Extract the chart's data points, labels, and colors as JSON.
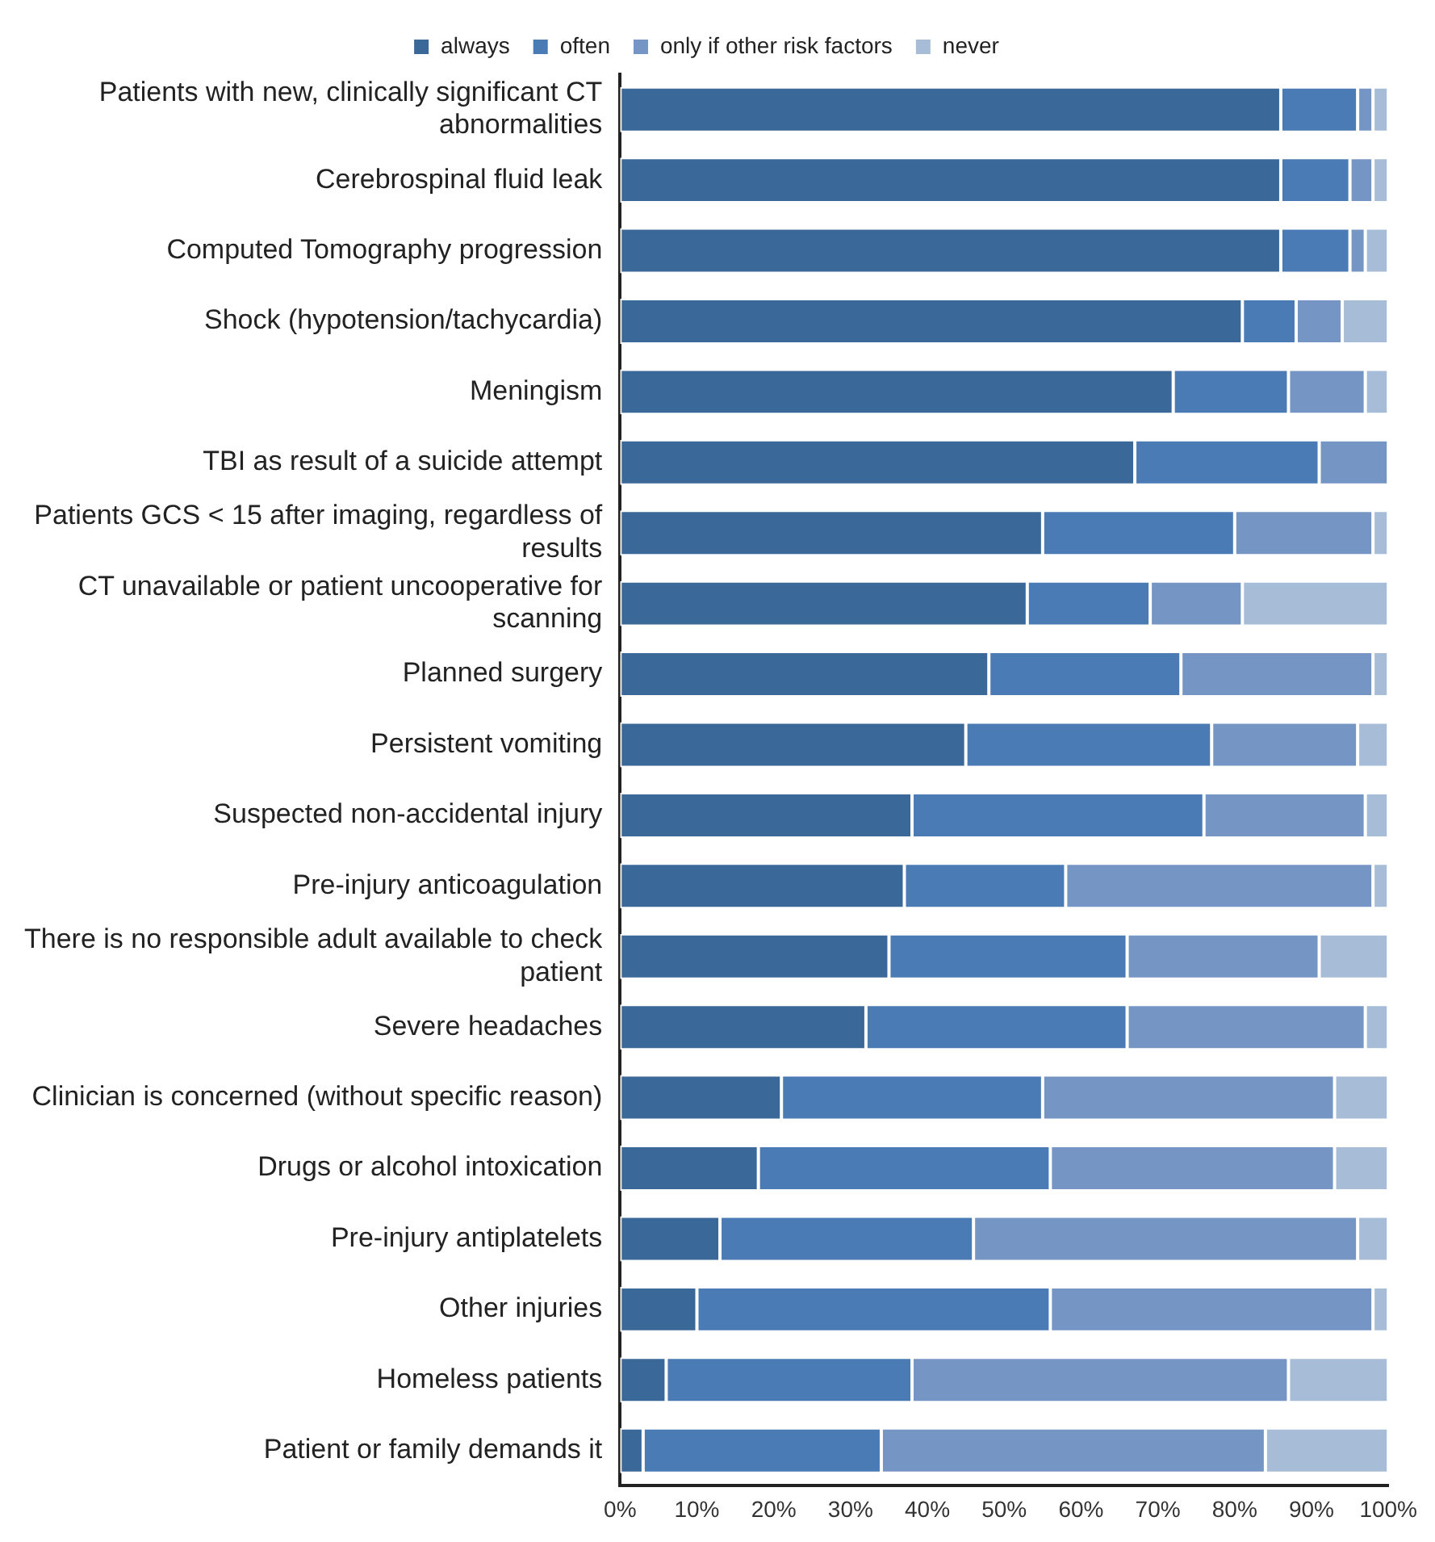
{
  "chart_data": {
    "type": "bar",
    "orientation": "horizontal",
    "stacked": true,
    "legend": "top",
    "grid": false,
    "categories": [
      "Patients with new, clinically significant CT abnormalities",
      "Cerebrospinal fluid leak",
      "Computed Tomography progression",
      "Shock (hypotension/tachycardia)",
      "Meningism",
      "TBI as result of a suicide attempt",
      "Patients GCS < 15 after imaging, regardless of results",
      "CT unavailable or patient uncooperative for scanning",
      "Planned surgery",
      "Persistent vomiting",
      "Suspected non-accidental injury",
      "Pre-injury anticoagulation",
      "There is no responsible adult available to check patient",
      "Severe headaches",
      "Clinician is concerned (without specific reason)",
      "Drugs or alcohol intoxication",
      "Pre-injury antiplatelets",
      "Other injuries",
      "Homeless patients",
      "Patient or family demands it"
    ],
    "series": [
      {
        "name": "always",
        "color": "#3a6898",
        "values": [
          86,
          86,
          86,
          81,
          72,
          67,
          55,
          53,
          48,
          45,
          38,
          37,
          35,
          32,
          21,
          18,
          13,
          10,
          6,
          3
        ]
      },
      {
        "name": "often",
        "color": "#4a7bb4",
        "values": [
          10,
          9,
          9,
          7,
          15,
          24,
          25,
          16,
          25,
          32,
          38,
          21,
          31,
          34,
          34,
          38,
          33,
          46,
          32,
          31
        ]
      },
      {
        "name": "only if other risk factors",
        "color": "#7596c4",
        "values": [
          2,
          3,
          2,
          6,
          10,
          9,
          18,
          12,
          25,
          19,
          21,
          40,
          25,
          31,
          38,
          37,
          50,
          42,
          49,
          50
        ]
      },
      {
        "name": "never",
        "color": "#a7bcd6",
        "values": [
          2,
          2,
          3,
          6,
          3,
          0,
          2,
          19,
          2,
          4,
          3,
          2,
          9,
          3,
          7,
          7,
          4,
          2,
          13,
          16
        ]
      }
    ],
    "xlim": [
      0,
      100
    ],
    "xticks": [
      {
        "value": 0,
        "label": "0%"
      },
      {
        "value": 10,
        "label": "10%"
      },
      {
        "value": 20,
        "label": "20%"
      },
      {
        "value": 30,
        "label": "30%"
      },
      {
        "value": 40,
        "label": "40%"
      },
      {
        "value": 50,
        "label": "50%"
      },
      {
        "value": 60,
        "label": "60%"
      },
      {
        "value": 70,
        "label": "70%"
      },
      {
        "value": 80,
        "label": "80%"
      },
      {
        "value": 90,
        "label": "90%"
      },
      {
        "value": 100,
        "label": "100%"
      }
    ]
  }
}
